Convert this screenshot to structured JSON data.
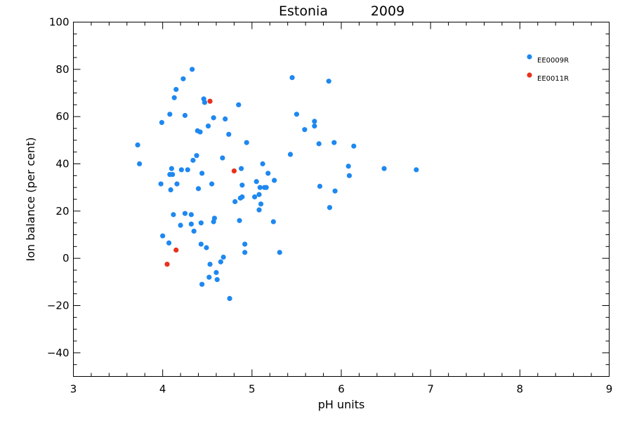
{
  "chart_data": {
    "type": "scatter",
    "title": "Estonia",
    "subtitle": "2009",
    "xlabel": "pH units",
    "ylabel": "Ion balance (per cent)",
    "xlim": [
      3,
      9
    ],
    "ylim": [
      -50,
      100
    ],
    "x_ticks": [
      3,
      4,
      5,
      6,
      7,
      8,
      9
    ],
    "y_ticks": [
      -40,
      -20,
      0,
      20,
      40,
      60,
      80,
      100
    ],
    "grid": false,
    "legend_position": "top-right",
    "series": [
      {
        "name": "EE0009R",
        "color": "#1e88f0",
        "points": [
          [
            3.72,
            48
          ],
          [
            3.74,
            40
          ],
          [
            3.98,
            31.5
          ],
          [
            3.99,
            57.5
          ],
          [
            4.0,
            9.5
          ],
          [
            4.07,
            6.5
          ],
          [
            4.08,
            61
          ],
          [
            4.08,
            35.5
          ],
          [
            4.09,
            29
          ],
          [
            4.1,
            38
          ],
          [
            4.11,
            35.5
          ],
          [
            4.12,
            18.5
          ],
          [
            4.13,
            68
          ],
          [
            4.15,
            71.5
          ],
          [
            4.16,
            31.5
          ],
          [
            4.2,
            14
          ],
          [
            4.21,
            37.5
          ],
          [
            4.23,
            76
          ],
          [
            4.25,
            60.5
          ],
          [
            4.25,
            19
          ],
          [
            4.28,
            37.5
          ],
          [
            4.32,
            14.5
          ],
          [
            4.32,
            18.5
          ],
          [
            4.33,
            80
          ],
          [
            4.34,
            41.5
          ],
          [
            4.35,
            11.5
          ],
          [
            4.38,
            43.5
          ],
          [
            4.39,
            54
          ],
          [
            4.4,
            29.5
          ],
          [
            4.42,
            53.5
          ],
          [
            4.43,
            6
          ],
          [
            4.43,
            15
          ],
          [
            4.44,
            36
          ],
          [
            4.44,
            -11
          ],
          [
            4.46,
            67.5
          ],
          [
            4.47,
            66
          ],
          [
            4.49,
            4.5
          ],
          [
            4.51,
            56
          ],
          [
            4.52,
            -8
          ],
          [
            4.53,
            -2.5
          ],
          [
            4.55,
            31.5
          ],
          [
            4.57,
            59.5
          ],
          [
            4.57,
            15.5
          ],
          [
            4.58,
            17
          ],
          [
            4.6,
            -6
          ],
          [
            4.61,
            -9
          ],
          [
            4.65,
            -1.5
          ],
          [
            4.67,
            42.5
          ],
          [
            4.68,
            0.5
          ],
          [
            4.7,
            59
          ],
          [
            4.74,
            52.5
          ],
          [
            4.75,
            -17
          ],
          [
            4.81,
            24
          ],
          [
            4.85,
            65
          ],
          [
            4.86,
            16
          ],
          [
            4.87,
            25.5
          ],
          [
            4.88,
            38
          ],
          [
            4.89,
            31
          ],
          [
            4.89,
            26
          ],
          [
            4.92,
            6
          ],
          [
            4.92,
            2.5
          ],
          [
            4.94,
            49
          ],
          [
            5.03,
            26
          ],
          [
            5.05,
            32.5
          ],
          [
            5.08,
            20.5
          ],
          [
            5.08,
            27
          ],
          [
            5.09,
            30
          ],
          [
            5.1,
            23
          ],
          [
            5.12,
            40
          ],
          [
            5.14,
            30
          ],
          [
            5.16,
            30
          ],
          [
            5.18,
            36
          ],
          [
            5.24,
            15.5
          ],
          [
            5.25,
            33
          ],
          [
            5.31,
            2.5
          ],
          [
            5.43,
            44
          ],
          [
            5.45,
            76.5
          ],
          [
            5.5,
            61
          ],
          [
            5.59,
            54.5
          ],
          [
            5.7,
            58
          ],
          [
            5.7,
            56
          ],
          [
            5.75,
            48.5
          ],
          [
            5.76,
            30.5
          ],
          [
            5.86,
            75
          ],
          [
            5.87,
            21.5
          ],
          [
            5.92,
            49
          ],
          [
            5.93,
            28.5
          ],
          [
            6.08,
            39
          ],
          [
            6.09,
            35
          ],
          [
            6.14,
            47.5
          ],
          [
            6.48,
            38
          ],
          [
            6.84,
            37.5
          ]
        ]
      },
      {
        "name": "EE0011R",
        "color": "#e8321e",
        "points": [
          [
            4.05,
            -2.5
          ],
          [
            4.15,
            3.5
          ],
          [
            4.53,
            66.5
          ],
          [
            4.8,
            37
          ]
        ]
      }
    ]
  }
}
